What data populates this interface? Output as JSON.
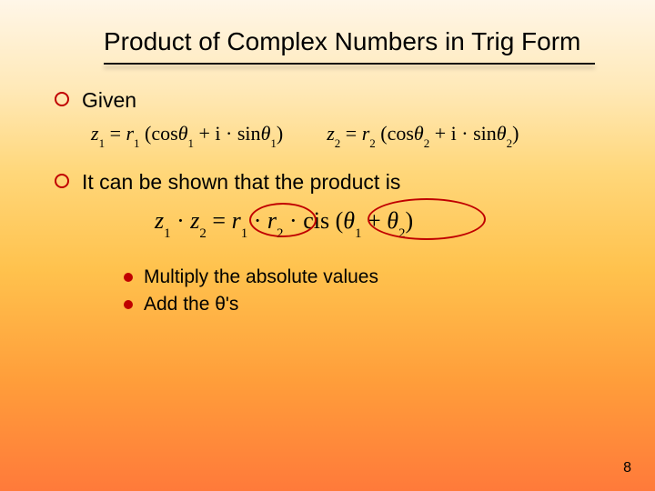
{
  "title": "Product of Complex Numbers in Trig Form",
  "bullets": {
    "given": "Given",
    "shown": "It can be shown that the product is"
  },
  "formulas": {
    "z1_lhs": "z",
    "z1_sub": "1",
    "eq": " = ",
    "r": "r",
    "r1_sub": "1",
    "lp": " (",
    "cos": "cos",
    "theta": "θ",
    "t1_sub": "1",
    "plus_i": " + i · ",
    "sin": "sin",
    "rp": ")",
    "z2_sub": "2",
    "r2_sub": "2",
    "t2_sub": "2",
    "dot": " · ",
    "cis": "cis",
    "plus": " + "
  },
  "subbullets": {
    "mult": "Multiply the absolute values",
    "add": "Add the θ's"
  },
  "page": "8",
  "colors": {
    "accent": "#c00000"
  }
}
